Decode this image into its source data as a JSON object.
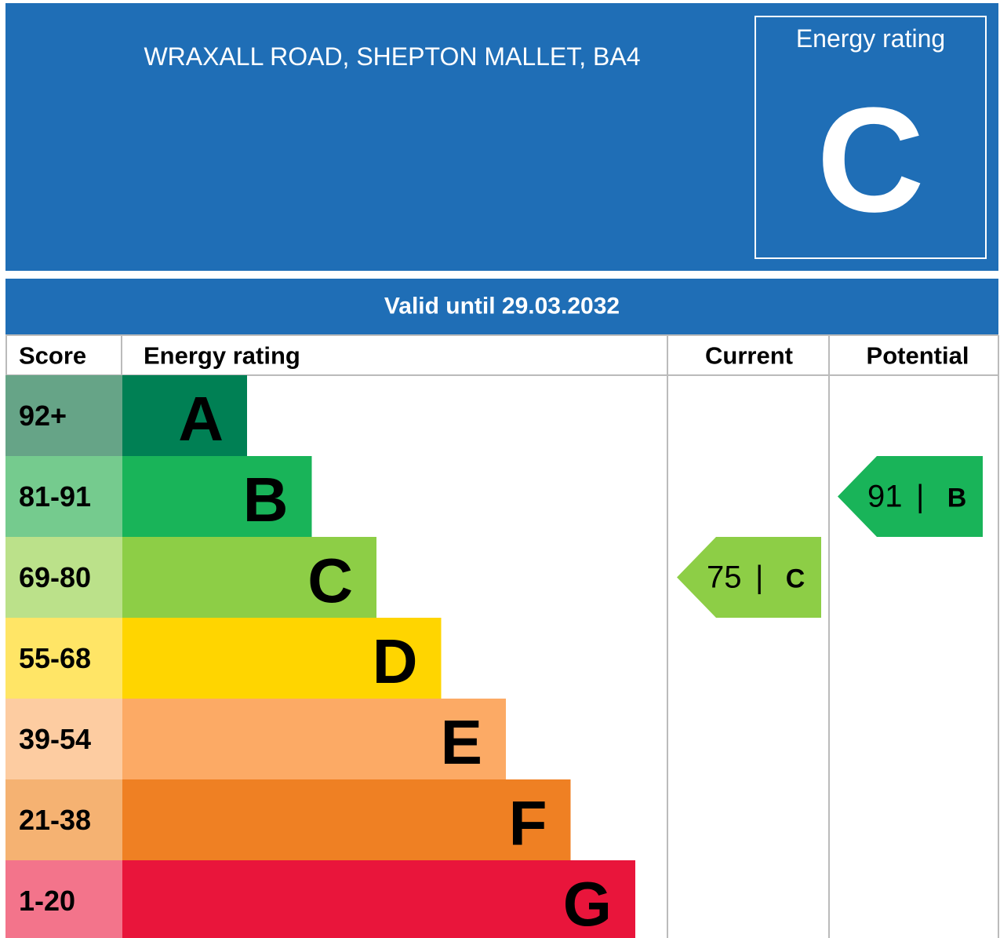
{
  "header": {
    "address": "WRAXALL ROAD, SHEPTON MALLET, BA4",
    "rating_label": "Energy rating",
    "rating": "C",
    "color": "#1f6eb6"
  },
  "valid": "Valid until 29.03.2032",
  "columns": [
    "Score",
    "Energy rating",
    "Current",
    "Potential"
  ],
  "bands": [
    {
      "score": "92+",
      "letter": "A",
      "color": "#008054",
      "score_color": "#66a487"
    },
    {
      "score": "81-91",
      "letter": "B",
      "color": "#19b459",
      "score_color": "#75cb8e"
    },
    {
      "score": "69-80",
      "letter": "C",
      "color": "#8dce46",
      "score_color": "#bbe18a"
    },
    {
      "score": "55-68",
      "letter": "D",
      "color": "#ffd500",
      "score_color": "#ffe566"
    },
    {
      "score": "39-54",
      "letter": "E",
      "color": "#fcaa65",
      "score_color": "#fdcca1"
    },
    {
      "score": "21-38",
      "letter": "F",
      "color": "#ef8023",
      "score_color": "#f5b272"
    },
    {
      "score": "1-20",
      "letter": "G",
      "color": "#e9153b",
      "score_color": "#f3748b"
    }
  ],
  "current": {
    "score": 75,
    "rating": "C",
    "band": 2
  },
  "potential": {
    "score": 91,
    "rating": "B",
    "band": 1
  }
}
